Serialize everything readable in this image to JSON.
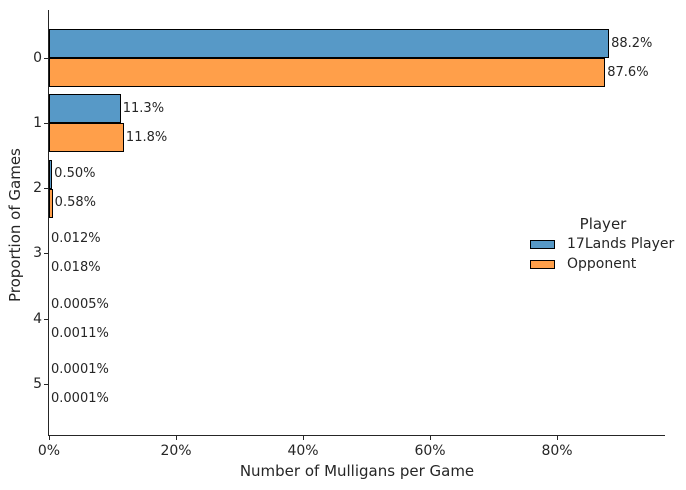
{
  "figure": {
    "background": "#ffffff",
    "text_color": "#262626",
    "bar_edge_color": "#000000"
  },
  "chart_data": {
    "type": "bar",
    "orientation": "horizontal",
    "xlabel": "Number of Mulligans per Game",
    "ylabel": "Proportion of Games",
    "categories": [
      "0",
      "1",
      "2",
      "3",
      "4",
      "5"
    ],
    "series": [
      {
        "name": "17Lands Player",
        "color": "#5799C7",
        "values": [
          88.2,
          11.3,
          0.5,
          0.012,
          0.0005,
          0.0001
        ],
        "labels": [
          "88.2%",
          "11.3%",
          "0.50%",
          "0.012%",
          "0.0005%",
          "0.0001%"
        ]
      },
      {
        "name": "Opponent",
        "color": "#FF9F4A",
        "values": [
          87.6,
          11.8,
          0.58,
          0.018,
          0.0011,
          0.0001
        ],
        "labels": [
          "87.6%",
          "11.8%",
          "0.58%",
          "0.018%",
          "0.0011%",
          "0.0001%"
        ]
      }
    ],
    "x_ticks": [
      {
        "value": 0,
        "label": "0%"
      },
      {
        "value": 20,
        "label": "20%"
      },
      {
        "value": 40,
        "label": "40%"
      },
      {
        "value": 60,
        "label": "60%"
      },
      {
        "value": 80,
        "label": "80%"
      }
    ],
    "xlim": [
      0,
      97
    ],
    "grid": false,
    "legend": {
      "title": "Player",
      "position": "center-right",
      "entries": [
        "17Lands Player",
        "Opponent"
      ]
    }
  }
}
